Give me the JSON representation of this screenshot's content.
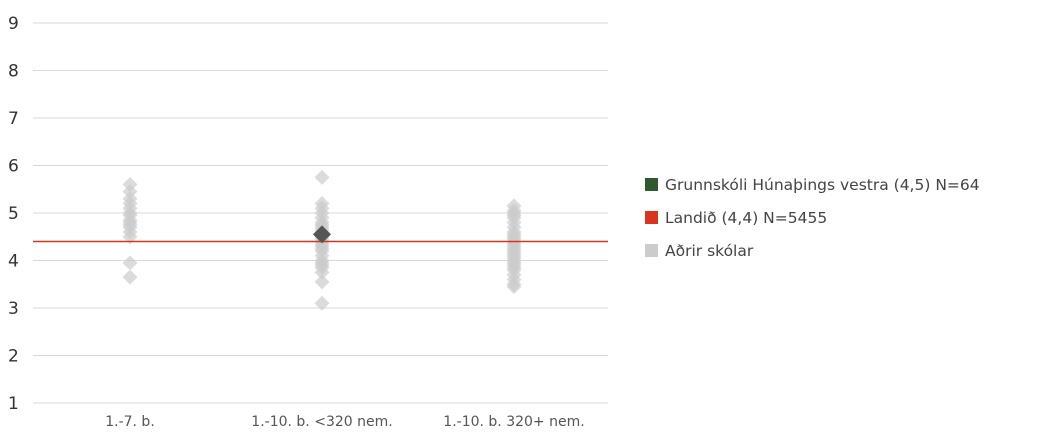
{
  "chart_data": {
    "type": "scatter",
    "categories": [
      "1.-7. b.",
      "1.-10. b. <320 nem.",
      "1.-10. b. 320+ nem."
    ],
    "ylim": [
      1,
      9
    ],
    "yticks": [
      "1",
      "2",
      "3",
      "4",
      "5",
      "6",
      "7",
      "8",
      "9"
    ],
    "grid": true,
    "legend_position": "right",
    "reference_line": {
      "name": "Landið (4,4) N=5455",
      "value": 4.4,
      "color": "#d9341c"
    },
    "highlight": {
      "name": "Grunnskóli Húnaþings vestra (4,5) N=64",
      "category": "1.-10. b. <320 nem.",
      "value": 4.55,
      "color": "#555555",
      "legend_color": "#2e5a2e"
    },
    "others": {
      "name": "Aðrir skólar",
      "color": "#cccccc",
      "points": [
        {
          "category": "1.-7. b.",
          "values": [
            5.6,
            5.45,
            5.3,
            5.2,
            5.1,
            5.0,
            4.95,
            4.85,
            4.8,
            4.75,
            4.7,
            4.6,
            4.5,
            3.95,
            3.65
          ]
        },
        {
          "category": "1.-10. b. <320 nem.",
          "values": [
            5.75,
            5.2,
            5.1,
            5.0,
            4.9,
            4.8,
            4.75,
            4.7,
            4.65,
            4.6,
            4.55,
            4.5,
            4.45,
            4.4,
            4.35,
            4.3,
            4.25,
            4.2,
            4.1,
            4.0,
            3.95,
            3.9,
            3.85,
            3.75,
            3.55,
            3.1
          ]
        },
        {
          "category": "1.-10. b. 320+ nem.",
          "values": [
            5.15,
            5.05,
            5.0,
            4.95,
            4.9,
            4.8,
            4.7,
            4.6,
            4.55,
            4.5,
            4.45,
            4.4,
            4.35,
            4.3,
            4.25,
            4.2,
            4.15,
            4.1,
            4.05,
            4.0,
            3.95,
            3.9,
            3.85,
            3.8,
            3.7,
            3.6,
            3.5,
            3.45
          ]
        }
      ]
    }
  }
}
